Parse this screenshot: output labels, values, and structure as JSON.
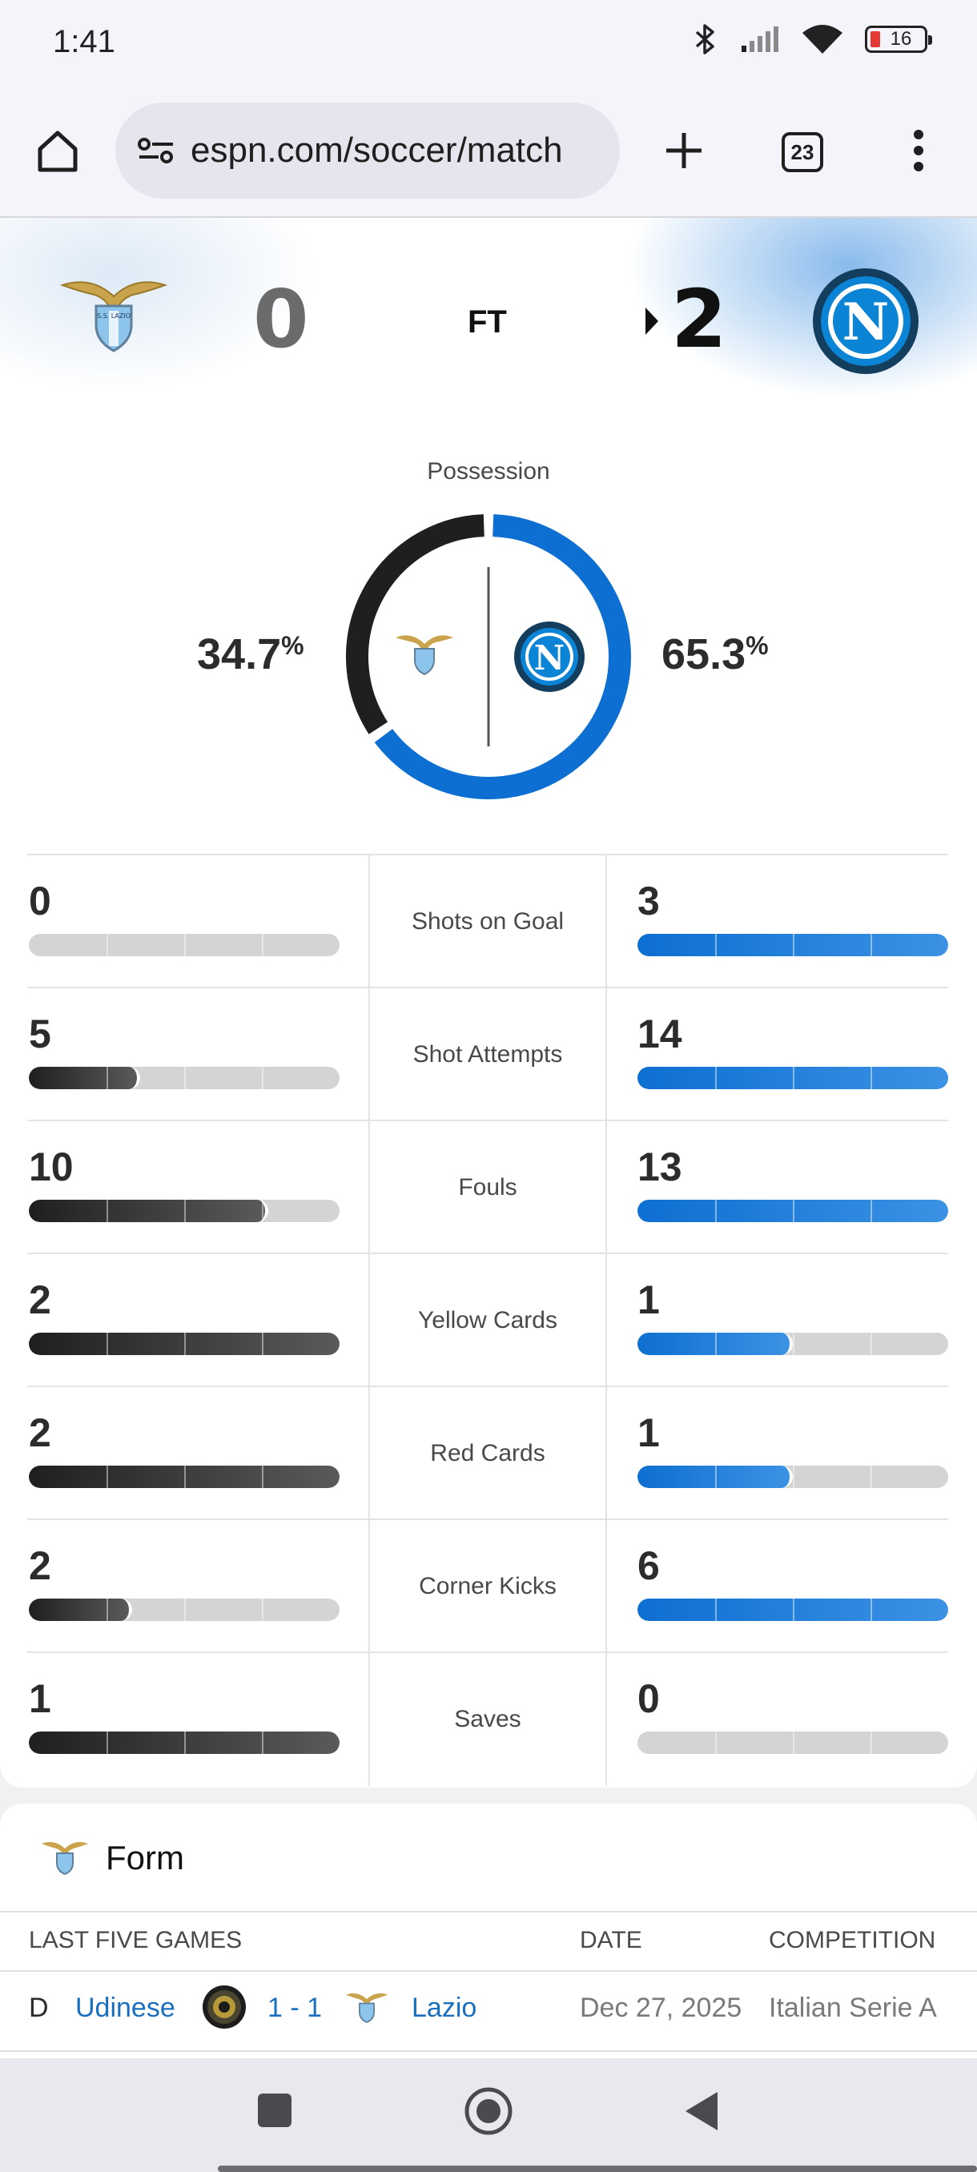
{
  "status_bar": {
    "time": "1:41",
    "battery": "16"
  },
  "browser": {
    "url": "espn.com/soccer/match",
    "tab_count": "23"
  },
  "match": {
    "home_team": "Lazio",
    "away_team": "Napoli",
    "home_score": "0",
    "away_score": "2",
    "status": "FT",
    "home_logo_text": "S.S. LAZIO",
    "away_logo_letter": "N",
    "home_color": "#1e1f21",
    "away_color": "#0d6fd1"
  },
  "possession": {
    "title": "Possession",
    "home_value": "34.7",
    "away_value": "65.3",
    "unit": "%",
    "home_fraction": 0.347,
    "away_fraction": 0.653
  },
  "stats": [
    {
      "label": "Shots on Goal",
      "home": "0",
      "away": "3",
      "home_fraction": 0.0,
      "away_fraction": 1.0
    },
    {
      "label": "Shot Attempts",
      "home": "5",
      "away": "14",
      "home_fraction": 0.357,
      "away_fraction": 1.0
    },
    {
      "label": "Fouls",
      "home": "10",
      "away": "13",
      "home_fraction": 0.77,
      "away_fraction": 1.0
    },
    {
      "label": "Yellow Cards",
      "home": "2",
      "away": "1",
      "home_fraction": 1.0,
      "away_fraction": 0.5
    },
    {
      "label": "Red Cards",
      "home": "2",
      "away": "1",
      "home_fraction": 1.0,
      "away_fraction": 0.5
    },
    {
      "label": "Corner Kicks",
      "home": "2",
      "away": "6",
      "home_fraction": 0.333,
      "away_fraction": 1.0
    },
    {
      "label": "Saves",
      "home": "1",
      "away": "0",
      "home_fraction": 1.0,
      "away_fraction": 0.0
    }
  ],
  "form": {
    "title": "Form",
    "columns": {
      "games": "LAST FIVE GAMES",
      "date": "DATE",
      "competition": "COMPETITION"
    },
    "rows": [
      {
        "result": "D",
        "home_team": "Udinese",
        "score": "1 - 1",
        "away_team": "Lazio",
        "date": "Dec 27, 2025",
        "competition": "Italian Serie A"
      }
    ]
  }
}
